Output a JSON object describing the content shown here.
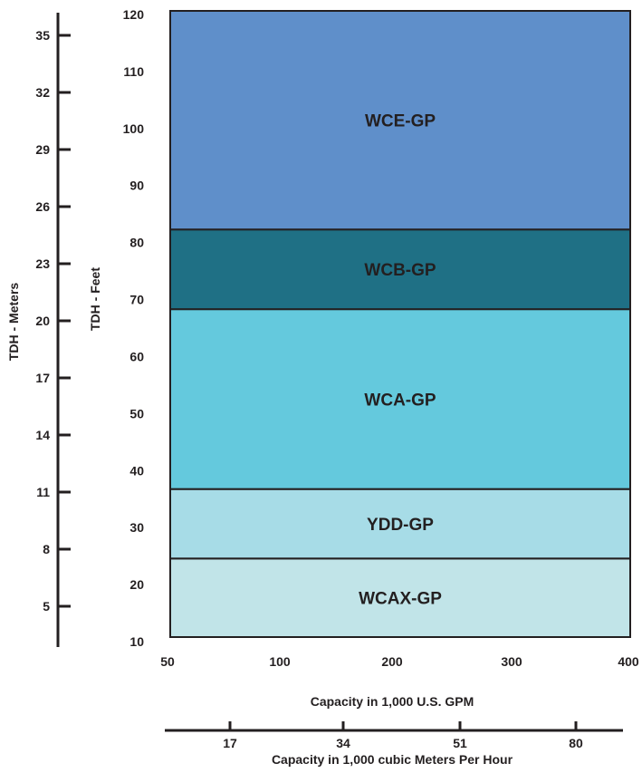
{
  "chart_data": {
    "type": "bar",
    "orientation": "stacked-bands",
    "x_primary": {
      "label": "Capacity in 1,000 U.S. GPM",
      "ticks": [
        "50",
        "100",
        "200",
        "300",
        "400"
      ]
    },
    "x_secondary": {
      "label": "Capacity in 1,000 cubic Meters Per Hour",
      "ticks": [
        "17",
        "34",
        "51",
        "80"
      ]
    },
    "y_feet": {
      "label": "TDH - Feet",
      "ticks": [
        "120",
        "110",
        "100",
        "90",
        "80",
        "70",
        "60",
        "50",
        "40",
        "30",
        "20",
        "10"
      ],
      "range": [
        10,
        120
      ]
    },
    "y_meters": {
      "label": "TDH - Meters",
      "ticks": [
        "35",
        "32",
        "29",
        "26",
        "23",
        "20",
        "17",
        "14",
        "11",
        "8",
        "5"
      ]
    },
    "bands": [
      {
        "name": "WCAX-GP",
        "y_from": 10,
        "y_to": 23.8,
        "color": "#c1e4e8"
      },
      {
        "name": "YDD-GP",
        "y_from": 23.8,
        "y_to": 36.0,
        "color": "#a7dce7"
      },
      {
        "name": "WCA-GP",
        "y_from": 36.0,
        "y_to": 67.6,
        "color": "#64c9dd"
      },
      {
        "name": "WCB-GP",
        "y_from": 67.6,
        "y_to": 81.6,
        "color": "#1f7085"
      },
      {
        "name": "WCE-GP",
        "y_from": 81.6,
        "y_to": 120,
        "color": "#5f8fca"
      }
    ]
  }
}
